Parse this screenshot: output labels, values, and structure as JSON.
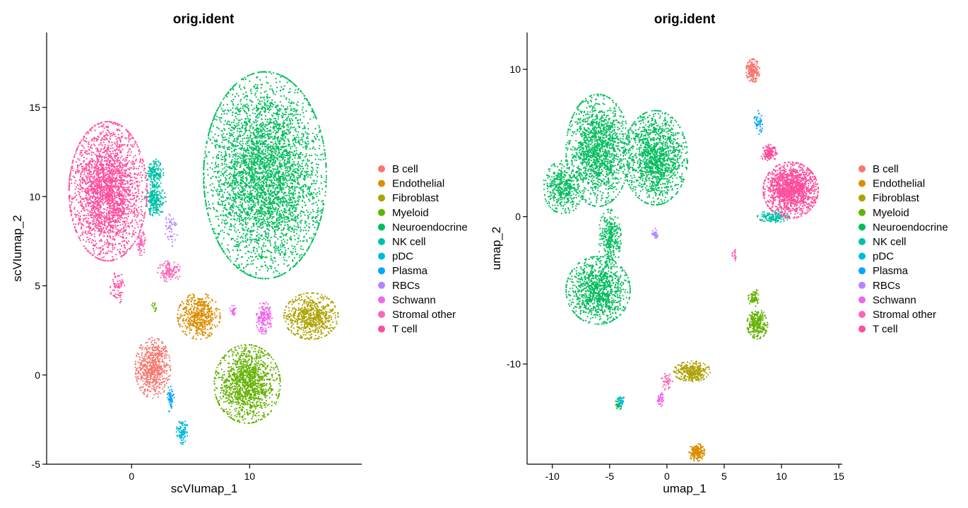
{
  "chart_data": [
    {
      "type": "scatter",
      "title": "orig.ident",
      "xlabel": "scVIumap_1",
      "ylabel": "scVIumap_2",
      "xlim": [
        -7.2,
        19.5
      ],
      "ylim": [
        -5,
        19.2
      ],
      "xticks": [
        0,
        10
      ],
      "yticks": [
        -5,
        0,
        5,
        10,
        15
      ],
      "legend": "right",
      "series": [
        {
          "name": "B cell",
          "color": "#F8766D",
          "clusters": [
            {
              "cx": 1.8,
              "cy": 0.4,
              "rx": 1.5,
              "ry": 1.7,
              "n": 620
            }
          ]
        },
        {
          "name": "Endothelial",
          "color": "#DB8E00",
          "clusters": [
            {
              "cx": 5.7,
              "cy": 3.3,
              "rx": 1.8,
              "ry": 1.3,
              "n": 520
            }
          ]
        },
        {
          "name": "Fibroblast",
          "color": "#AEA200",
          "clusters": [
            {
              "cx": 15.2,
              "cy": 3.3,
              "rx": 2.3,
              "ry": 1.3,
              "n": 650
            }
          ]
        },
        {
          "name": "Myeloid",
          "color": "#64B200",
          "clusters": [
            {
              "cx": 9.8,
              "cy": -0.5,
              "rx": 2.8,
              "ry": 2.2,
              "n": 1300
            },
            {
              "cx": 2.0,
              "cy": 3.8,
              "rx": 0.3,
              "ry": 0.3,
              "n": 12
            }
          ]
        },
        {
          "name": "Neuroendocrine",
          "color": "#00BD5C",
          "clusters": [
            {
              "cx": 11.3,
              "cy": 11.2,
              "rx": 5.2,
              "ry": 5.8,
              "n": 4200
            }
          ]
        },
        {
          "name": "NK cell",
          "color": "#00C1A7",
          "clusters": [
            {
              "cx": 2.0,
              "cy": 9.8,
              "rx": 0.9,
              "ry": 0.9,
              "n": 220
            },
            {
              "cx": 2.0,
              "cy": 11.3,
              "rx": 0.7,
              "ry": 0.8,
              "n": 160
            }
          ]
        },
        {
          "name": "pDC",
          "color": "#00BADE",
          "clusters": [
            {
              "cx": 4.3,
              "cy": -3.2,
              "rx": 0.5,
              "ry": 0.7,
              "n": 90
            }
          ]
        },
        {
          "name": "Plasma",
          "color": "#00A6FF",
          "clusters": [
            {
              "cx": 3.3,
              "cy": -1.3,
              "rx": 0.3,
              "ry": 0.8,
              "n": 55
            }
          ]
        },
        {
          "name": "RBCs",
          "color": "#B385FF",
          "clusters": [
            {
              "cx": 3.3,
              "cy": 8.2,
              "rx": 0.6,
              "ry": 1.0,
              "n": 50
            }
          ]
        },
        {
          "name": "Schwann",
          "color": "#EF67EB",
          "clusters": [
            {
              "cx": 11.2,
              "cy": 3.2,
              "rx": 0.7,
              "ry": 0.9,
              "n": 170
            },
            {
              "cx": 8.6,
              "cy": 3.6,
              "rx": 0.3,
              "ry": 0.3,
              "n": 25
            }
          ]
        },
        {
          "name": "Stromal other",
          "color": "#FF63B6",
          "clusters": [
            {
              "cx": 3.2,
              "cy": 5.8,
              "rx": 1.0,
              "ry": 0.6,
              "n": 110
            },
            {
              "cx": 0.8,
              "cy": 7.4,
              "rx": 0.4,
              "ry": 0.7,
              "n": 70
            }
          ]
        },
        {
          "name": "T cell",
          "color": "#FF4D9D",
          "clusters": [
            {
              "cx": -2.0,
              "cy": 10.3,
              "rx": 3.3,
              "ry": 3.9,
              "n": 2600
            },
            {
              "cx": -1.2,
              "cy": 4.9,
              "rx": 0.6,
              "ry": 0.9,
              "n": 70
            }
          ]
        }
      ]
    },
    {
      "type": "scatter",
      "title": "orig.ident",
      "xlabel": "umap_1",
      "ylabel": "umap_2",
      "xlim": [
        -12.2,
        15.3
      ],
      "ylim": [
        -16.8,
        12.5
      ],
      "xticks": [
        -10,
        -5,
        0,
        5,
        10,
        15
      ],
      "yticks": [
        -10,
        0,
        10
      ],
      "legend": "right",
      "series": [
        {
          "name": "B cell",
          "color": "#F8766D",
          "clusters": [
            {
              "cx": 7.5,
              "cy": 9.9,
              "rx": 0.6,
              "ry": 0.8,
              "n": 200
            }
          ]
        },
        {
          "name": "Endothelial",
          "color": "#DB8E00",
          "clusters": [
            {
              "cx": 2.6,
              "cy": -16.0,
              "rx": 0.7,
              "ry": 0.6,
              "n": 180
            }
          ]
        },
        {
          "name": "Fibroblast",
          "color": "#AEA200",
          "clusters": [
            {
              "cx": 2.2,
              "cy": -10.5,
              "rx": 1.6,
              "ry": 0.7,
              "n": 320
            }
          ]
        },
        {
          "name": "Myeloid",
          "color": "#64B200",
          "clusters": [
            {
              "cx": 7.9,
              "cy": -7.3,
              "rx": 0.9,
              "ry": 1.0,
              "n": 280
            },
            {
              "cx": 7.6,
              "cy": -5.5,
              "rx": 0.5,
              "ry": 0.6,
              "n": 70
            }
          ]
        },
        {
          "name": "Neuroendocrine",
          "color": "#00BD5C",
          "clusters": [
            {
              "cx": -6.0,
              "cy": 4.5,
              "rx": 2.8,
              "ry": 3.8,
              "n": 1500
            },
            {
              "cx": -1.0,
              "cy": 4.0,
              "rx": 2.8,
              "ry": 3.2,
              "n": 1400
            },
            {
              "cx": -9.0,
              "cy": 2.0,
              "rx": 1.8,
              "ry": 1.8,
              "n": 450
            },
            {
              "cx": -6.0,
              "cy": -5.0,
              "rx": 2.8,
              "ry": 2.3,
              "n": 1100
            },
            {
              "cx": -5.0,
              "cy": -1.5,
              "rx": 1.0,
              "ry": 2.0,
              "n": 300
            },
            {
              "cx": -4.2,
              "cy": -12.7,
              "rx": 0.3,
              "ry": 0.4,
              "n": 40
            }
          ]
        },
        {
          "name": "NK cell",
          "color": "#00C1A7",
          "clusters": [
            {
              "cx": 9.3,
              "cy": 0.0,
              "rx": 1.4,
              "ry": 0.4,
              "n": 160
            }
          ]
        },
        {
          "name": "pDC",
          "color": "#00BADE",
          "clusters": [
            {
              "cx": -4.0,
              "cy": -12.5,
              "rx": 0.3,
              "ry": 0.4,
              "n": 30
            }
          ]
        },
        {
          "name": "Plasma",
          "color": "#00A6FF",
          "clusters": [
            {
              "cx": 8.0,
              "cy": 6.4,
              "rx": 0.4,
              "ry": 0.8,
              "n": 45
            }
          ]
        },
        {
          "name": "RBCs",
          "color": "#B385FF",
          "clusters": [
            {
              "cx": -1.0,
              "cy": -1.2,
              "rx": 0.3,
              "ry": 0.4,
              "n": 30
            }
          ]
        },
        {
          "name": "Schwann",
          "color": "#EF67EB",
          "clusters": [
            {
              "cx": -0.6,
              "cy": -12.4,
              "rx": 0.3,
              "ry": 0.5,
              "n": 45
            }
          ]
        },
        {
          "name": "Stromal other",
          "color": "#FF63B6",
          "clusters": [
            {
              "cx": 0.0,
              "cy": -11.2,
              "rx": 0.5,
              "ry": 0.6,
              "n": 45
            },
            {
              "cx": 5.9,
              "cy": -2.6,
              "rx": 0.2,
              "ry": 0.4,
              "n": 18
            }
          ]
        },
        {
          "name": "T cell",
          "color": "#FF4D9D",
          "clusters": [
            {
              "cx": 10.8,
              "cy": 1.8,
              "rx": 2.4,
              "ry": 1.9,
              "n": 1500
            },
            {
              "cx": 8.9,
              "cy": 4.3,
              "rx": 0.7,
              "ry": 0.6,
              "n": 150
            }
          ]
        }
      ]
    }
  ]
}
